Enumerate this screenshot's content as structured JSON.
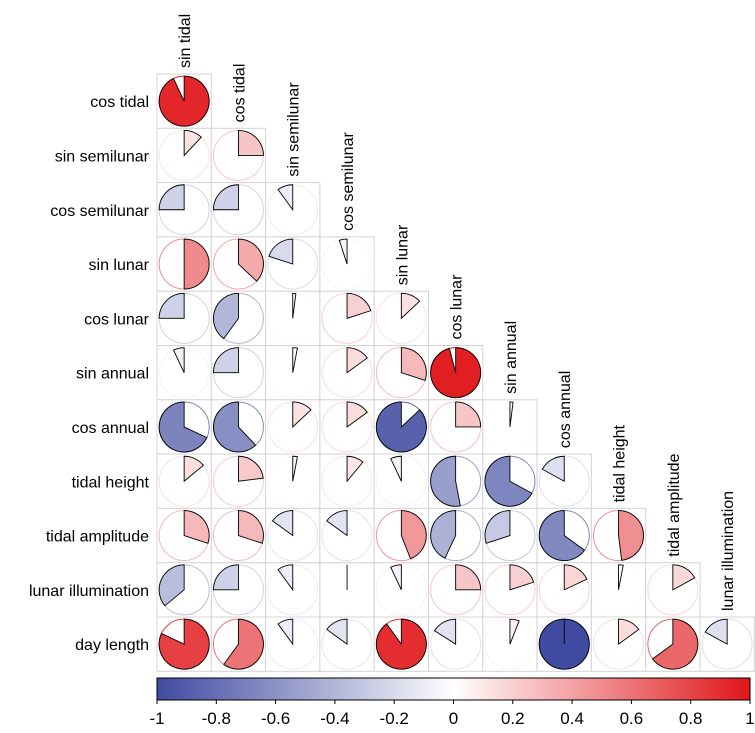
{
  "chart_data": {
    "type": "heatmap",
    "subtype": "correlation-pie",
    "variables": [
      "sin tidal",
      "cos tidal",
      "sin semilunar",
      "cos semilunar",
      "sin lunar",
      "cos lunar",
      "sin annual",
      "cos annual",
      "tidal height",
      "tidal amplitude",
      "lunar illumination",
      "day length"
    ],
    "row_labels": [
      "cos tidal",
      "sin semilunar",
      "cos semilunar",
      "sin lunar",
      "cos lunar",
      "sin annual",
      "cos annual",
      "tidal height",
      "tidal amplitude",
      "lunar illumination",
      "day length"
    ],
    "column_labels": [
      "sin tidal",
      "cos tidal",
      "sin semilunar",
      "cos semilunar",
      "sin lunar",
      "cos lunar",
      "sin annual",
      "cos annual",
      "tidal height",
      "tidal amplitude",
      "lunar illumination"
    ],
    "correlations": [
      [
        0.93
      ],
      [
        0.12,
        0.25
      ],
      [
        -0.25,
        -0.25,
        -0.1
      ],
      [
        0.5,
        0.37,
        -0.2,
        -0.05
      ],
      [
        -0.25,
        -0.4,
        0.02,
        0.2,
        0.13
      ],
      [
        -0.07,
        -0.25,
        0.03,
        0.15,
        0.3,
        0.96
      ],
      [
        -0.68,
        -0.62,
        0.13,
        0.15,
        -0.87,
        0.25,
        0.02
      ],
      [
        0.14,
        0.23,
        0.03,
        0.11,
        -0.07,
        -0.53,
        -0.67,
        -0.17
      ],
      [
        0.3,
        0.3,
        -0.15,
        -0.15,
        0.44,
        -0.43,
        -0.3,
        -0.65,
        0.48
      ],
      [
        -0.36,
        -0.25,
        -0.1,
        0.0,
        -0.07,
        0.25,
        0.2,
        0.18,
        0.03,
        0.17
      ],
      [
        0.82,
        0.6,
        -0.1,
        -0.15,
        0.9,
        -0.16,
        0.06,
        -1.0,
        0.15,
        0.65,
        -0.17
      ]
    ],
    "colorbar": {
      "min": -1,
      "max": 1,
      "ticks": [
        -1,
        -0.8,
        -0.6,
        -0.4,
        -0.2,
        0,
        0.2,
        0.4,
        0.6,
        0.8,
        1
      ],
      "tick_labels": [
        "-1",
        "-0.8",
        "-0.6",
        "-0.4",
        "-0.2",
        "0",
        "0.2",
        "0.4",
        "0.6",
        "0.8",
        "1"
      ],
      "colors": {
        "negative": "#3f4aa0",
        "neutral": "#ffffff",
        "positive": "#e0161a"
      }
    },
    "title": "",
    "xlabel": "",
    "ylabel": ""
  }
}
